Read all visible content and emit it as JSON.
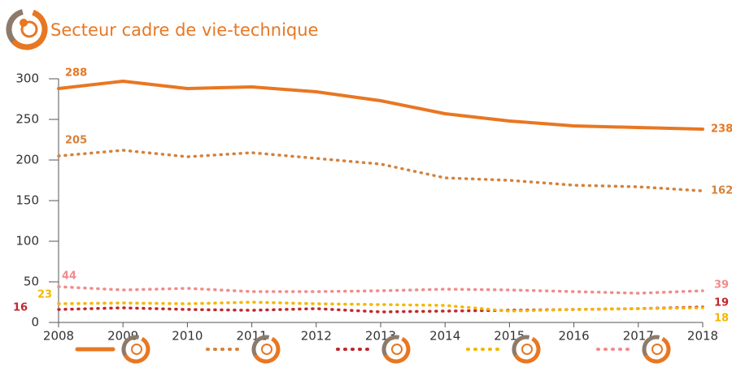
{
  "chart_data": {
    "type": "line",
    "title": "Secteur cadre de vie-technique",
    "x": [
      2008,
      2009,
      2010,
      2011,
      2012,
      2013,
      2014,
      2015,
      2016,
      2017,
      2018
    ],
    "xlim": [
      2008,
      2018
    ],
    "xticks": [
      2008,
      2009,
      2010,
      2011,
      2012,
      2013,
      2014,
      2015,
      2016,
      2017,
      2018
    ],
    "ylim": [
      0,
      300
    ],
    "yticks": [
      0,
      50,
      100,
      150,
      200,
      250,
      300
    ],
    "grid": false,
    "series": [
      {
        "color": "#e87722",
        "linestyle": "solid",
        "values": [
          288,
          297,
          288,
          290,
          284,
          273,
          257,
          248,
          242,
          240,
          238
        ]
      },
      {
        "color": "#d4823c",
        "linestyle": "dotted",
        "values": [
          205,
          212,
          204,
          209,
          202,
          195,
          178,
          175,
          169,
          167,
          162
        ]
      },
      {
        "color": "#c0282d",
        "linestyle": "dotted",
        "values": [
          16,
          18,
          16,
          15,
          17,
          13,
          14,
          15,
          16,
          17,
          19
        ]
      },
      {
        "color": "#f2b705",
        "linestyle": "dotted",
        "values": [
          23,
          24,
          23,
          25,
          23,
          22,
          21,
          14,
          16,
          17,
          18
        ]
      },
      {
        "color": "#f08c8c",
        "linestyle": "dotted",
        "values": [
          44,
          40,
          42,
          38,
          38,
          39,
          41,
          40,
          38,
          36,
          39
        ]
      }
    ]
  }
}
